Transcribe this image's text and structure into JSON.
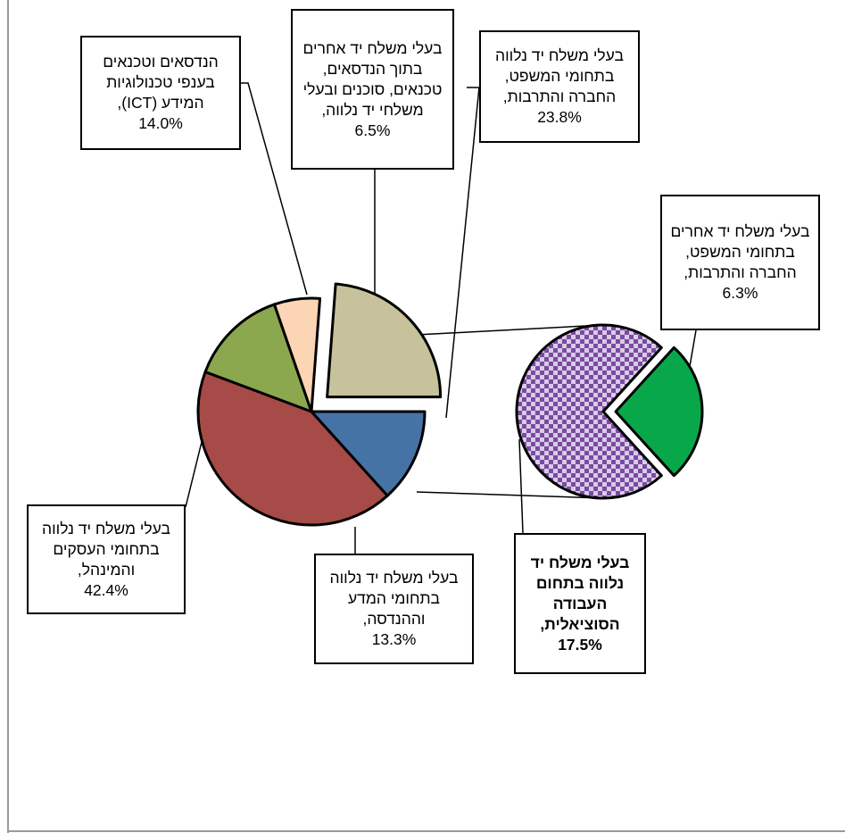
{
  "colors": {
    "business": "#A64B47",
    "science": "#4673A6",
    "law_society": "#C8C29C",
    "other_engineers": "#FCD5B4",
    "ict": "#8CA84F",
    "social_work": "#7A4BA0",
    "social_work_check": "#D8CCE8",
    "other_law_society": "#08A74A"
  },
  "chart_data": {
    "type": "pie",
    "subtype": "pie-of-pie",
    "title": "",
    "slices": [
      {
        "label": "בעלי משלח יד נלווה בתחומי העסקים והמינהל,",
        "value": 42.4,
        "display": "42.4%"
      },
      {
        "label": "בעלי משלח יד נלווה בתחומי המדע וההנדסה,",
        "value": 13.3,
        "display": "13.3%"
      },
      {
        "label": "בעלי משלח יד נלווה בתחומי המשפט, החברה והתרבות,",
        "value": 23.8,
        "display": "23.8%",
        "exploded": true
      },
      {
        "label": "בעלי משלח יד אחרים בתוך הנדסאים, טכנאים, סוכנים ובעלי משלחי יד נלווה,",
        "value": 6.5,
        "display": "6.5%"
      },
      {
        "label": "הנדסאים וטכנאים בענפי טכנולוגיות המידע (ICT),",
        "value": 14.0,
        "display": "14.0%"
      }
    ],
    "secondary_slices": [
      {
        "label": "בעלי משלח יד נלווה בתחום העבודה הסוציאלית,",
        "value": 17.5,
        "display": "17.5%",
        "pattern": "checker"
      },
      {
        "label": "בעלי משלח יד אחרים בתחומי המשפט, החברה והתרבות,",
        "value": 6.3,
        "display": "6.3%",
        "exploded": true
      }
    ]
  }
}
